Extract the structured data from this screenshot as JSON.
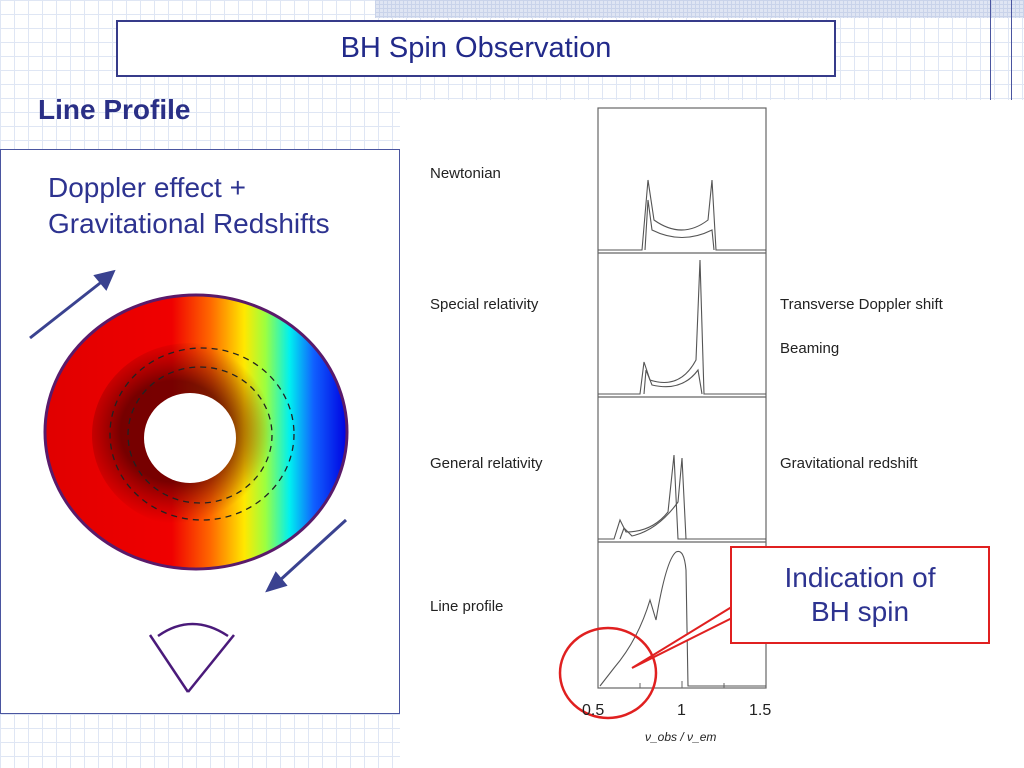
{
  "slide": {
    "title": "BH Spin Observation",
    "heading": "Line Profile",
    "subtitle_lines": [
      "Doppler effect +",
      "Gravitational Redshifts"
    ]
  },
  "figure": {
    "left_labels": [
      "Newtonian",
      "Special relativity",
      "General relativity",
      "Line profile"
    ],
    "right_labels": [
      "Transverse Doppler shift",
      "Beaming",
      "Gravitational redshift"
    ],
    "x_ticks": [
      "0.5",
      "1",
      "1.5"
    ],
    "x_axis_label": "ν_obs / ν_em"
  },
  "callout": {
    "lines": [
      "Indication of",
      "BH spin"
    ]
  },
  "colors": {
    "title_text": "#222a8a",
    "accent_border": "#363b8a",
    "callout_border": "#e02020",
    "disk_outline": "#5a1a6a"
  }
}
